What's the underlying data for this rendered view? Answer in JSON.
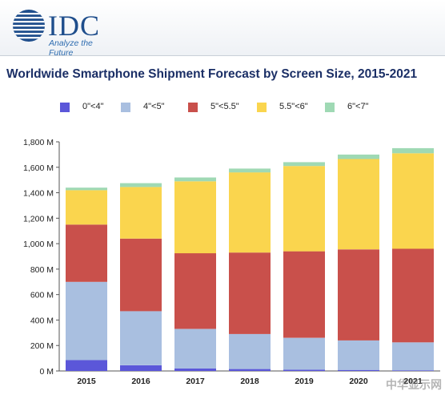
{
  "header": {
    "logo_word": "IDC",
    "tagline": "Analyze the Future"
  },
  "watermark": "中华显示网",
  "chart_data": {
    "type": "bar",
    "stacked": true,
    "title": "Worldwide Smartphone Shipment Forecast by Screen Size, 2015-2021",
    "xlabel": "",
    "ylabel": "",
    "categories": [
      "2015",
      "2016",
      "2017",
      "2018",
      "2019",
      "2020",
      "2021"
    ],
    "ylim": [
      0,
      1800
    ],
    "yticks": [
      0,
      200,
      400,
      600,
      800,
      1000,
      1200,
      1400,
      1600,
      1800
    ],
    "ytick_labels": [
      "0 M",
      "200 M",
      "400 M",
      "600 M",
      "800 M",
      "1,000 M",
      "1,200 M",
      "1,400 M",
      "1,600 M",
      "1,800 M"
    ],
    "legend_position": "top",
    "grid": false,
    "series": [
      {
        "name": "0\"<4\"",
        "color": "#5b57d9",
        "values": [
          85,
          45,
          20,
          15,
          10,
          8,
          5
        ]
      },
      {
        "name": "4\"<5\"",
        "color": "#a9bfe0",
        "values": [
          615,
          425,
          310,
          275,
          250,
          232,
          220
        ]
      },
      {
        "name": "5\"<5.5\"",
        "color": "#c9504b",
        "values": [
          450,
          570,
          595,
          640,
          680,
          715,
          735
        ]
      },
      {
        "name": "5.5\"<6\"",
        "color": "#fad54e",
        "values": [
          270,
          405,
          565,
          630,
          670,
          710,
          750
        ]
      },
      {
        "name": "6\"<7\"",
        "color": "#9fd9b4",
        "values": [
          20,
          30,
          30,
          30,
          30,
          35,
          40
        ]
      }
    ]
  }
}
